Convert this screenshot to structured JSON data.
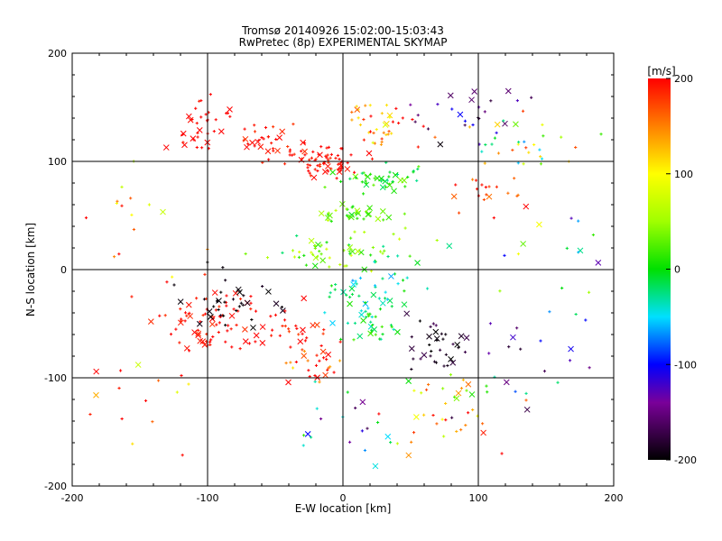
{
  "chart_data": {
    "type": "scatter",
    "title": "Tromsø 20140926 15:02:00-15:03:43",
    "subtitle": "RwPretec (8p) EXPERIMENTAL SKYMAP",
    "xlabel": "E-W location [km]",
    "ylabel": "N-S location [km]",
    "xlim": [
      -200,
      200
    ],
    "ylim": [
      -200,
      200
    ],
    "x_ticks": [
      "-200",
      "-100",
      "0",
      "100",
      "200"
    ],
    "y_ticks": [
      "-200",
      "-100",
      "0",
      "100",
      "200"
    ],
    "grid": true,
    "colorbar": {
      "label": "[m/s]",
      "range": [
        -200,
        200
      ],
      "ticks": [
        "200",
        "100",
        "0",
        "-100",
        "-200"
      ],
      "colormap": "rainbow: black(-200) → purple → blue(-100) → cyan → green(0) → yellow(100) → orange → red(200)"
    },
    "markers": [
      "+",
      "×"
    ],
    "clusters": [
      {
        "x": -105,
        "y": 135,
        "count": 35,
        "spread": [
          22,
          25
        ],
        "v": 200,
        "vspread": 10
      },
      {
        "x": -60,
        "y": 120,
        "count": 30,
        "spread": [
          20,
          15
        ],
        "v": 195,
        "vspread": 15
      },
      {
        "x": -15,
        "y": 100,
        "count": 70,
        "spread": [
          28,
          15
        ],
        "v": 195,
        "vspread": 15
      },
      {
        "x": 30,
        "y": 135,
        "count": 40,
        "spread": [
          25,
          18
        ],
        "v": 150,
        "vspread": 70
      },
      {
        "x": 30,
        "y": 85,
        "count": 45,
        "spread": [
          30,
          10
        ],
        "v": 5,
        "vspread": 35
      },
      {
        "x": 85,
        "y": 140,
        "count": 25,
        "spread": [
          30,
          25
        ],
        "v": -150,
        "vspread": 50
      },
      {
        "x": 130,
        "y": 115,
        "count": 30,
        "spread": [
          35,
          25
        ],
        "v": 60,
        "vspread": 140
      },
      {
        "x": 105,
        "y": 70,
        "count": 20,
        "spread": [
          25,
          20
        ],
        "v": 180,
        "vspread": 30
      },
      {
        "x": 10,
        "y": 52,
        "count": 35,
        "spread": [
          25,
          8
        ],
        "v": 30,
        "vspread": 40
      },
      {
        "x": 0,
        "y": 15,
        "count": 60,
        "spread": [
          45,
          15
        ],
        "v": 25,
        "vspread": 60
      },
      {
        "x": 15,
        "y": -20,
        "count": 45,
        "spread": [
          30,
          20
        ],
        "v": -30,
        "vspread": 40
      },
      {
        "x": 20,
        "y": -55,
        "count": 30,
        "spread": [
          15,
          15
        ],
        "v": -5,
        "vspread": 40
      },
      {
        "x": -95,
        "y": -45,
        "count": 80,
        "spread": [
          35,
          30
        ],
        "v": 195,
        "vspread": 15
      },
      {
        "x": -85,
        "y": -30,
        "count": 35,
        "spread": [
          25,
          20
        ],
        "v": -195,
        "vspread": 10
      },
      {
        "x": -35,
        "y": -55,
        "count": 30,
        "spread": [
          25,
          25
        ],
        "v": 190,
        "vspread": 20
      },
      {
        "x": -20,
        "y": -85,
        "count": 25,
        "spread": [
          20,
          15
        ],
        "v": 160,
        "vspread": 60
      },
      {
        "x": 70,
        "y": -75,
        "count": 35,
        "spread": [
          20,
          20
        ],
        "v": -185,
        "vspread": 20
      },
      {
        "x": 80,
        "y": -130,
        "count": 40,
        "spread": [
          35,
          35
        ],
        "v": 120,
        "vspread": 120
      },
      {
        "x": 20,
        "y": -150,
        "count": 20,
        "spread": [
          40,
          30
        ],
        "v": -80,
        "vspread": 100
      },
      {
        "x": -150,
        "y": -120,
        "count": 15,
        "spread": [
          35,
          50
        ],
        "v": 150,
        "vspread": 80
      },
      {
        "x": 140,
        "y": -80,
        "count": 20,
        "spread": [
          40,
          50
        ],
        "v": -100,
        "vspread": 100
      },
      {
        "x": -150,
        "y": 50,
        "count": 15,
        "spread": [
          35,
          40
        ],
        "v": 130,
        "vspread": 80
      },
      {
        "x": 150,
        "y": 20,
        "count": 15,
        "spread": [
          40,
          40
        ],
        "v": -20,
        "vspread": 120
      }
    ]
  }
}
